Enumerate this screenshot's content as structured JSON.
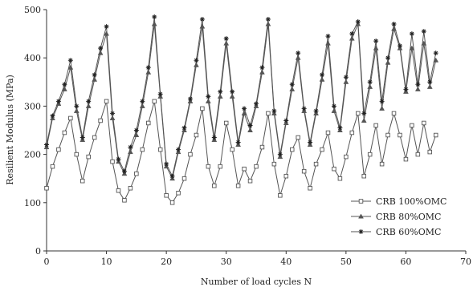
{
  "chart_data": {
    "type": "line",
    "xlabel": "Number of load cycles N",
    "ylabel": "Resilient Modulus (MPa)",
    "xlim": [
      0,
      70
    ],
    "ylim": [
      0,
      500
    ],
    "x_ticks": [
      0,
      10,
      20,
      30,
      40,
      50,
      60,
      70
    ],
    "y_ticks": [
      0,
      100,
      200,
      300,
      400,
      500
    ],
    "grid": false,
    "legend_position": "bottom-right",
    "x": [
      0,
      1,
      2,
      3,
      4,
      5,
      6,
      7,
      8,
      9,
      10,
      11,
      12,
      13,
      14,
      15,
      16,
      17,
      18,
      19,
      20,
      21,
      22,
      23,
      24,
      25,
      26,
      27,
      28,
      29,
      30,
      31,
      32,
      33,
      34,
      35,
      36,
      37,
      38,
      39,
      40,
      41,
      42,
      43,
      44,
      45,
      46,
      47,
      48,
      49,
      50,
      51,
      52,
      53,
      54,
      55,
      56,
      57,
      58,
      59,
      60,
      61,
      62,
      63,
      64,
      65
    ],
    "series": [
      {
        "name": "CRB 100%OMC",
        "marker": "square",
        "color": "#555555",
        "values": [
          130,
          175,
          210,
          245,
          275,
          200,
          145,
          195,
          235,
          270,
          310,
          185,
          125,
          105,
          130,
          160,
          210,
          265,
          310,
          210,
          115,
          100,
          120,
          150,
          200,
          240,
          295,
          175,
          135,
          175,
          265,
          210,
          135,
          170,
          145,
          175,
          215,
          285,
          180,
          115,
          155,
          210,
          235,
          165,
          130,
          180,
          210,
          245,
          170,
          150,
          195,
          245,
          285,
          155,
          200,
          260,
          180,
          240,
          285,
          240,
          190,
          260,
          200,
          265,
          205,
          240
        ]
      },
      {
        "name": "CRB 80%OMC",
        "marker": "triangle",
        "color": "#555555",
        "values": [
          215,
          275,
          305,
          335,
          380,
          290,
          230,
          300,
          355,
          410,
          450,
          275,
          185,
          160,
          205,
          240,
          300,
          370,
          470,
          320,
          175,
          150,
          205,
          250,
          310,
          385,
          465,
          310,
          230,
          320,
          430,
          320,
          220,
          285,
          250,
          300,
          370,
          470,
          285,
          195,
          265,
          335,
          400,
          290,
          220,
          285,
          355,
          430,
          290,
          250,
          350,
          440,
          470,
          270,
          340,
          420,
          295,
          390,
          460,
          420,
          330,
          420,
          335,
          430,
          340,
          395
        ]
      },
      {
        "name": "CRB 60%OMC",
        "marker": "star",
        "color": "#555555",
        "values": [
          220,
          280,
          310,
          345,
          395,
          300,
          235,
          310,
          365,
          420,
          465,
          285,
          190,
          165,
          215,
          250,
          310,
          380,
          485,
          325,
          180,
          155,
          210,
          255,
          315,
          395,
          480,
          320,
          235,
          330,
          440,
          330,
          225,
          295,
          260,
          305,
          380,
          480,
          290,
          200,
          270,
          345,
          410,
          295,
          225,
          290,
          365,
          445,
          300,
          255,
          360,
          450,
          475,
          285,
          350,
          435,
          310,
          400,
          470,
          425,
          335,
          450,
          345,
          455,
          350,
          410
        ]
      }
    ]
  }
}
